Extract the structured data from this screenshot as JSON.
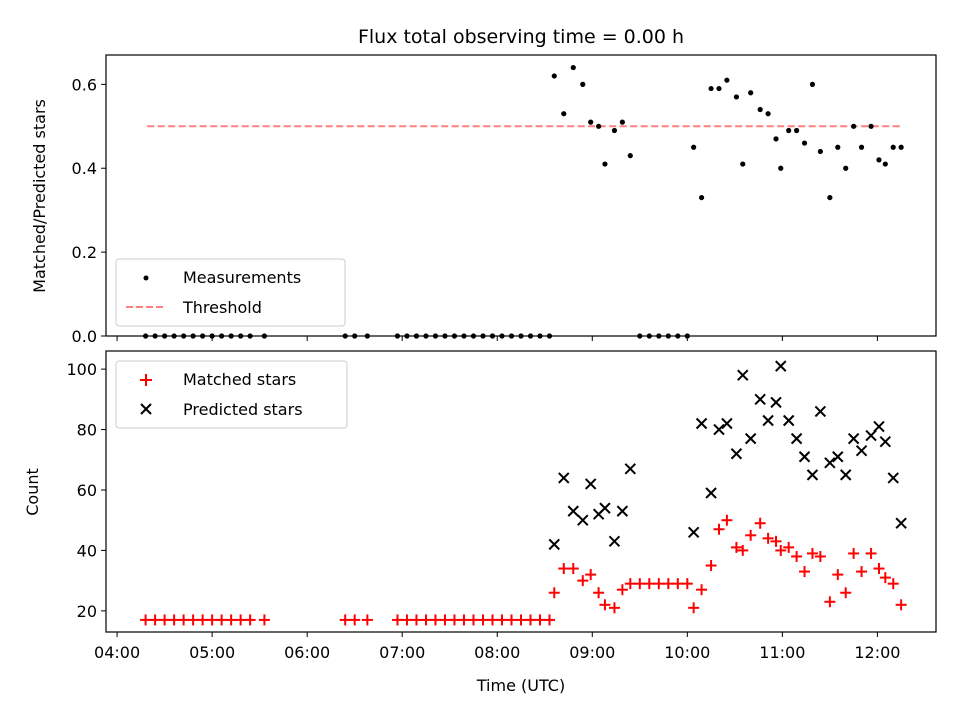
{
  "chart_data": [
    {
      "type": "scatter",
      "title": "Flux total observing time = 0.00 h",
      "xlabel": "",
      "ylabel": "Matched/Predicted stars",
      "ylim": [
        0,
        0.67
      ],
      "yticks": [
        0.0,
        0.2,
        0.4,
        0.6
      ],
      "ytick_labels": [
        "0.0",
        "0.2",
        "0.4",
        "0.6"
      ],
      "legend_position": "lower-left",
      "series": [
        {
          "name": "Measurements",
          "color": "#000000",
          "marker": "dot",
          "points": [
            [
              "04:18",
              0
            ],
            [
              "04:24",
              0
            ],
            [
              "04:30",
              0
            ],
            [
              "04:36",
              0
            ],
            [
              "04:42",
              0
            ],
            [
              "04:48",
              0
            ],
            [
              "04:54",
              0
            ],
            [
              "05:00",
              0
            ],
            [
              "05:06",
              0
            ],
            [
              "05:12",
              0
            ],
            [
              "05:18",
              0
            ],
            [
              "05:24",
              0
            ],
            [
              "05:33",
              0
            ],
            [
              "06:24",
              0
            ],
            [
              "06:30",
              0
            ],
            [
              "06:38",
              0
            ],
            [
              "06:57",
              0
            ],
            [
              "07:03",
              0
            ],
            [
              "07:09",
              0
            ],
            [
              "07:15",
              0
            ],
            [
              "07:21",
              0
            ],
            [
              "07:27",
              0
            ],
            [
              "07:33",
              0
            ],
            [
              "07:39",
              0
            ],
            [
              "07:45",
              0
            ],
            [
              "07:51",
              0
            ],
            [
              "07:57",
              0
            ],
            [
              "08:03",
              0
            ],
            [
              "08:09",
              0
            ],
            [
              "08:15",
              0
            ],
            [
              "08:21",
              0
            ],
            [
              "08:27",
              0
            ],
            [
              "08:33",
              0
            ],
            [
              "09:30",
              0
            ],
            [
              "09:36",
              0
            ],
            [
              "09:42",
              0
            ],
            [
              "09:48",
              0
            ],
            [
              "09:54",
              0
            ],
            [
              "10:00",
              0
            ],
            [
              "08:36",
              0.62
            ],
            [
              "08:42",
              0.53
            ],
            [
              "08:48",
              0.64
            ],
            [
              "08:54",
              0.6
            ],
            [
              "08:59",
              0.51
            ],
            [
              "09:04",
              0.5
            ],
            [
              "09:08",
              0.41
            ],
            [
              "09:14",
              0.49
            ],
            [
              "09:19",
              0.51
            ],
            [
              "09:24",
              0.43
            ],
            [
              "10:04",
              0.45
            ],
            [
              "10:09",
              0.33
            ],
            [
              "10:15",
              0.59
            ],
            [
              "10:20",
              0.59
            ],
            [
              "10:25",
              0.61
            ],
            [
              "10:31",
              0.57
            ],
            [
              "10:35",
              0.41
            ],
            [
              "10:40",
              0.58
            ],
            [
              "10:46",
              0.54
            ],
            [
              "10:51",
              0.53
            ],
            [
              "10:56",
              0.47
            ],
            [
              "10:59",
              0.4
            ],
            [
              "11:04",
              0.49
            ],
            [
              "11:09",
              0.49
            ],
            [
              "11:14",
              0.46
            ],
            [
              "11:19",
              0.6
            ],
            [
              "11:24",
              0.44
            ],
            [
              "11:30",
              0.33
            ],
            [
              "11:35",
              0.45
            ],
            [
              "11:40",
              0.4
            ],
            [
              "11:45",
              0.5
            ],
            [
              "11:50",
              0.45
            ],
            [
              "11:56",
              0.5
            ],
            [
              "12:01",
              0.42
            ],
            [
              "12:05",
              0.41
            ],
            [
              "12:10",
              0.45
            ],
            [
              "12:15",
              0.45
            ]
          ]
        },
        {
          "name": "Threshold",
          "color": "#ff7f7f",
          "line": "dashed",
          "points": [
            [
              "04:19",
              0.5
            ],
            [
              "12:15",
              0.5
            ]
          ]
        }
      ]
    },
    {
      "type": "scatter",
      "xlabel": "Time (UTC)",
      "ylabel": "Count",
      "ylim": [
        13,
        106
      ],
      "xlim": [
        "03:53",
        "12:37"
      ],
      "yticks": [
        20,
        40,
        60,
        80,
        100
      ],
      "ytick_labels": [
        "20",
        "40",
        "60",
        "80",
        "100"
      ],
      "xticks": [
        "04:00",
        "05:00",
        "06:00",
        "07:00",
        "08:00",
        "09:00",
        "10:00",
        "11:00",
        "12:00"
      ],
      "legend_position": "upper-left",
      "series": [
        {
          "name": "Matched stars",
          "color": "#ff0000",
          "marker": "plus",
          "points": [
            [
              "04:18",
              17
            ],
            [
              "04:24",
              17
            ],
            [
              "04:30",
              17
            ],
            [
              "04:36",
              17
            ],
            [
              "04:42",
              17
            ],
            [
              "04:48",
              17
            ],
            [
              "04:54",
              17
            ],
            [
              "05:00",
              17
            ],
            [
              "05:06",
              17
            ],
            [
              "05:12",
              17
            ],
            [
              "05:18",
              17
            ],
            [
              "05:24",
              17
            ],
            [
              "05:33",
              17
            ],
            [
              "06:24",
              17
            ],
            [
              "06:30",
              17
            ],
            [
              "06:38",
              17
            ],
            [
              "06:57",
              17
            ],
            [
              "07:03",
              17
            ],
            [
              "07:09",
              17
            ],
            [
              "07:15",
              17
            ],
            [
              "07:21",
              17
            ],
            [
              "07:27",
              17
            ],
            [
              "07:33",
              17
            ],
            [
              "07:39",
              17
            ],
            [
              "07:45",
              17
            ],
            [
              "07:51",
              17
            ],
            [
              "07:57",
              17
            ],
            [
              "08:03",
              17
            ],
            [
              "08:09",
              17
            ],
            [
              "08:15",
              17
            ],
            [
              "08:21",
              17
            ],
            [
              "08:27",
              17
            ],
            [
              "08:33",
              17
            ],
            [
              "08:36",
              26
            ],
            [
              "08:42",
              34
            ],
            [
              "08:48",
              34
            ],
            [
              "08:54",
              30
            ],
            [
              "08:59",
              32
            ],
            [
              "09:04",
              26
            ],
            [
              "09:08",
              22
            ],
            [
              "09:14",
              21
            ],
            [
              "09:19",
              27
            ],
            [
              "09:24",
              29
            ],
            [
              "09:30",
              29
            ],
            [
              "09:36",
              29
            ],
            [
              "09:42",
              29
            ],
            [
              "09:48",
              29
            ],
            [
              "09:54",
              29
            ],
            [
              "10:00",
              29
            ],
            [
              "10:04",
              21
            ],
            [
              "10:09",
              27
            ],
            [
              "10:15",
              35
            ],
            [
              "10:20",
              47
            ],
            [
              "10:25",
              50
            ],
            [
              "10:31",
              41
            ],
            [
              "10:35",
              40
            ],
            [
              "10:40",
              45
            ],
            [
              "10:46",
              49
            ],
            [
              "10:51",
              44
            ],
            [
              "10:56",
              43
            ],
            [
              "10:59",
              40
            ],
            [
              "11:04",
              41
            ],
            [
              "11:09",
              38
            ],
            [
              "11:14",
              33
            ],
            [
              "11:19",
              39
            ],
            [
              "11:24",
              38
            ],
            [
              "11:30",
              23
            ],
            [
              "11:35",
              32
            ],
            [
              "11:40",
              26
            ],
            [
              "11:45",
              39
            ],
            [
              "11:50",
              33
            ],
            [
              "11:56",
              39
            ],
            [
              "12:01",
              34
            ],
            [
              "12:05",
              31
            ],
            [
              "12:10",
              29
            ],
            [
              "12:15",
              22
            ]
          ]
        },
        {
          "name": "Predicted stars",
          "color": "#000000",
          "marker": "x",
          "points": [
            [
              "08:36",
              42
            ],
            [
              "08:42",
              64
            ],
            [
              "08:48",
              53
            ],
            [
              "08:54",
              50
            ],
            [
              "08:59",
              62
            ],
            [
              "09:04",
              52
            ],
            [
              "09:08",
              54
            ],
            [
              "09:14",
              43
            ],
            [
              "09:19",
              53
            ],
            [
              "09:24",
              67
            ],
            [
              "10:04",
              46
            ],
            [
              "10:09",
              82
            ],
            [
              "10:15",
              59
            ],
            [
              "10:20",
              80
            ],
            [
              "10:25",
              82
            ],
            [
              "10:31",
              72
            ],
            [
              "10:35",
              98
            ],
            [
              "10:40",
              77
            ],
            [
              "10:46",
              90
            ],
            [
              "10:51",
              83
            ],
            [
              "10:56",
              89
            ],
            [
              "10:59",
              101
            ],
            [
              "11:04",
              83
            ],
            [
              "11:09",
              77
            ],
            [
              "11:14",
              71
            ],
            [
              "11:19",
              65
            ],
            [
              "11:24",
              86
            ],
            [
              "11:30",
              69
            ],
            [
              "11:35",
              71
            ],
            [
              "11:40",
              65
            ],
            [
              "11:45",
              77
            ],
            [
              "11:50",
              73
            ],
            [
              "11:56",
              78
            ],
            [
              "12:01",
              81
            ],
            [
              "12:05",
              76
            ],
            [
              "12:10",
              64
            ],
            [
              "12:15",
              49
            ]
          ]
        }
      ]
    }
  ]
}
